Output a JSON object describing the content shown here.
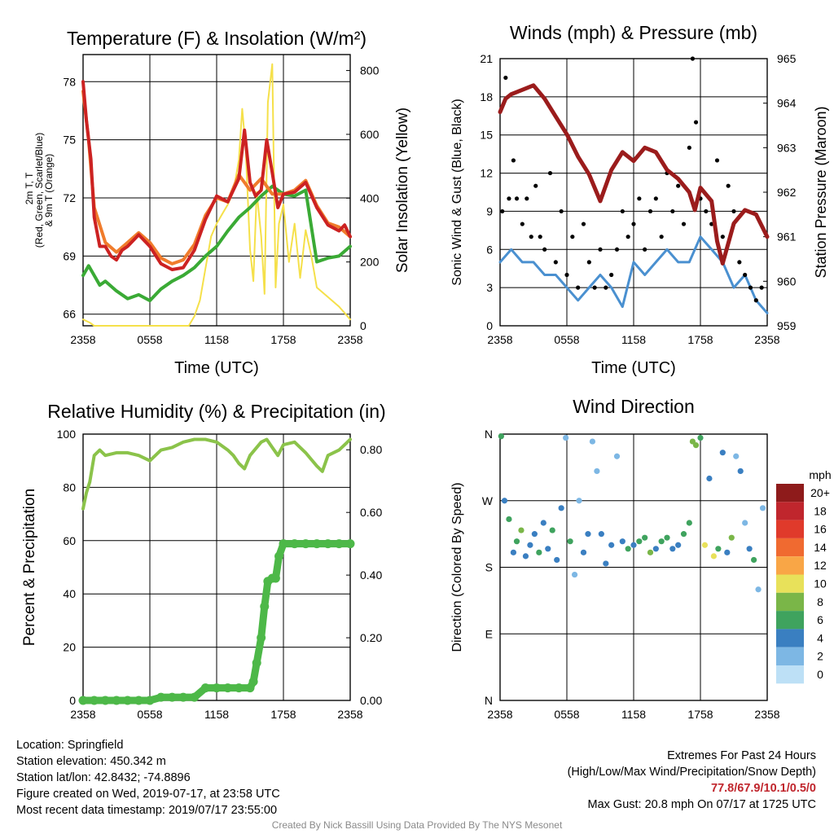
{
  "chart_data": [
    {
      "type": "line",
      "title": "Temperature (F) & Insolation (W/m²)",
      "xlabel": "Time (UTC)",
      "ylabel": "2m T, T_d, HI/WC (Red, Green, Scarlet/Blue) & 9m T (Orange)",
      "y2label": "Solar Insolation (Yellow)",
      "xticks": [
        "2358",
        "0558",
        "1158",
        "1758",
        "2358"
      ],
      "yticks": [
        "66",
        "69",
        "72",
        "75",
        "78"
      ],
      "y2ticks": [
        "0",
        "200",
        "400",
        "600",
        "800"
      ],
      "ylim": [
        65.4,
        79.4
      ],
      "y2lim": [
        0,
        850
      ],
      "colors": {
        "temp": "#cc2222",
        "temp9m": "#f07c2c",
        "dewpoint": "#3aaa35",
        "insolation": "#f5e04a"
      },
      "series": [
        {
          "key": "temp",
          "x": [
            0,
            0.3,
            0.7,
            1,
            1.5,
            2,
            2.5,
            3,
            3.5,
            4,
            5,
            6,
            7,
            8,
            9,
            10,
            11,
            12,
            13,
            14,
            14.5,
            15,
            15.5,
            16,
            16.5,
            17,
            17.5,
            18,
            19,
            20,
            21,
            22,
            23,
            23.5,
            24
          ],
          "values": [
            78,
            76,
            74,
            71,
            69.5,
            69.5,
            69,
            68.8,
            69.3,
            69.5,
            70.1,
            69.5,
            68.6,
            68.3,
            68.4,
            69.3,
            70.9,
            72.1,
            71.8,
            73,
            75.5,
            72.8,
            72.1,
            72.4,
            75,
            73.3,
            71.5,
            72.2,
            72.3,
            72.8,
            71.5,
            70.6,
            70.3,
            70.6,
            70
          ]
        },
        {
          "key": "temp9m",
          "x": [
            0,
            0.5,
            1,
            2,
            3,
            4,
            5,
            6,
            7,
            8,
            9,
            10,
            11,
            12,
            13,
            14,
            15,
            16,
            17,
            18,
            19,
            20,
            21,
            22,
            23,
            24
          ],
          "values": [
            77.5,
            75,
            71.5,
            69.7,
            69.2,
            69.7,
            70.2,
            69.7,
            68.9,
            68.6,
            68.8,
            69.6,
            71.1,
            72,
            71.8,
            73.2,
            72.4,
            73,
            72.2,
            72.2,
            72.4,
            72.9,
            71.6,
            70.7,
            70.5,
            70
          ]
        },
        {
          "key": "dewpoint",
          "x": [
            0,
            0.5,
            1,
            1.5,
            2,
            3,
            4,
            5,
            6,
            7,
            8,
            9,
            10,
            11,
            12,
            13,
            14,
            15,
            16,
            17,
            18,
            19,
            20,
            21,
            22,
            23,
            24
          ],
          "values": [
            68,
            68.5,
            68,
            67.5,
            67.7,
            67.2,
            66.8,
            67,
            66.7,
            67.3,
            67.7,
            68,
            68.4,
            69,
            69.5,
            70.3,
            71,
            71.5,
            72.1,
            72.6,
            72.2,
            72.1,
            72.4,
            68.7,
            68.9,
            69,
            69.5
          ]
        },
        {
          "key": "insolation",
          "x": [
            0,
            0.3,
            0.6,
            1,
            2,
            4,
            6,
            8,
            9.5,
            10,
            10.5,
            11,
            11.5,
            12,
            12.5,
            13,
            13.5,
            14,
            14.3,
            14.6,
            15,
            15.3,
            15.6,
            16,
            16.3,
            16.6,
            17,
            17.3,
            17.6,
            18,
            18.5,
            19,
            19.5,
            20,
            20.5,
            21,
            22,
            23,
            23.5,
            24
          ],
          "values": [
            20,
            15,
            10,
            0,
            0,
            0,
            0,
            0,
            0,
            30,
            80,
            180,
            280,
            320,
            350,
            380,
            420,
            520,
            680,
            560,
            240,
            140,
            420,
            280,
            100,
            700,
            820,
            120,
            320,
            380,
            200,
            320,
            150,
            300,
            220,
            120,
            90,
            60,
            40,
            20
          ]
        }
      ]
    },
    {
      "type": "scatter",
      "title": "Winds (mph) & Pressure (mb)",
      "xlabel": "Time (UTC)",
      "ylabel": "Sonic Wind & Gust (Blue, Black)",
      "y2label": "Station Pressure (Maroon)",
      "xticks": [
        "2358",
        "0558",
        "1158",
        "1758",
        "2358"
      ],
      "yticks": [
        "0",
        "3",
        "6",
        "9",
        "12",
        "15",
        "18",
        "21"
      ],
      "y2ticks": [
        "959",
        "960",
        "961",
        "962",
        "963",
        "964",
        "965"
      ],
      "ylim": [
        0,
        21
      ],
      "y2lim": [
        959,
        965
      ],
      "colors": {
        "wind": "#4a90d0",
        "gust": "#000000",
        "pressure": "#9b1c1c"
      },
      "series": [
        {
          "key": "pressure",
          "x": [
            0,
            0.5,
            1,
            2,
            3,
            4,
            5,
            6,
            7,
            8,
            9,
            10,
            11,
            12,
            13,
            14,
            15,
            16,
            17,
            17.5,
            18,
            19,
            19.5,
            20,
            21,
            22,
            23,
            24
          ],
          "values": [
            963.8,
            964.1,
            964.2,
            964.3,
            964.4,
            964.1,
            963.7,
            963.3,
            962.8,
            962.4,
            961.8,
            962.5,
            962.9,
            962.7,
            963,
            962.9,
            962.5,
            962.3,
            962,
            961.6,
            962.1,
            961.8,
            960.9,
            960.4,
            961.3,
            961.6,
            961.5,
            961
          ]
        },
        {
          "key": "wind",
          "x": [
            0,
            1,
            2,
            3,
            4,
            5,
            6,
            7,
            8,
            9,
            10,
            11,
            12,
            13,
            14,
            15,
            16,
            17,
            18,
            19,
            20,
            21,
            22,
            23,
            24
          ],
          "values": [
            5,
            6,
            5,
            5,
            4,
            4,
            3,
            2,
            3,
            4,
            3,
            1.5,
            5,
            4,
            5,
            6,
            5,
            5,
            7,
            6,
            5,
            3,
            4,
            2,
            1
          ]
        },
        {
          "key": "gust",
          "x": [
            0.2,
            0.5,
            0.8,
            1.2,
            1.5,
            2,
            2.4,
            2.8,
            3.2,
            3.6,
            4,
            4.5,
            5,
            5.5,
            6,
            6.5,
            7,
            7.5,
            8,
            8.5,
            9,
            9.5,
            10,
            10.5,
            11,
            11.5,
            12,
            12.5,
            13,
            13.5,
            14,
            14.5,
            15,
            15.5,
            16,
            16.5,
            17,
            17.3,
            17.6,
            18,
            18.5,
            19,
            19.5,
            20,
            20.5,
            21,
            21.5,
            22,
            22.5,
            23,
            23.5
          ],
          "values": [
            9,
            19.5,
            10,
            13,
            10,
            8,
            10,
            7,
            11,
            7,
            6,
            12,
            5,
            9,
            4,
            7,
            3,
            8,
            5,
            3,
            6,
            3,
            4,
            6,
            9,
            7,
            8,
            10,
            6,
            9,
            10,
            7,
            12,
            9,
            11,
            8,
            14,
            21,
            16,
            10,
            9,
            8,
            13,
            7,
            11,
            9,
            5,
            4,
            3,
            2,
            3
          ]
        }
      ]
    },
    {
      "type": "scatter",
      "title": "Relative Humidity (%) & Precipitation (in)",
      "xlabel": "",
      "ylabel": "Percent & Precipitation",
      "xticks": [
        "2358",
        "0558",
        "1158",
        "1758",
        "2358"
      ],
      "yticks": [
        "0",
        "20",
        "40",
        "60",
        "80",
        "100"
      ],
      "y2ticks": [
        "0.00",
        "0.20",
        "0.40",
        "0.60",
        "0.80"
      ],
      "ylim": [
        0,
        100
      ],
      "y2lim": [
        0,
        0.85
      ],
      "colors": {
        "rh": "#8bc34a",
        "precip": "#4db848"
      },
      "series": [
        {
          "key": "rh",
          "x": [
            0,
            0.3,
            0.6,
            1,
            1.5,
            2,
            3,
            4,
            5,
            6,
            7,
            8,
            9,
            10,
            11,
            12,
            13,
            13.5,
            14,
            14.5,
            15,
            16,
            16.5,
            17,
            17.5,
            18,
            19,
            20,
            21,
            21.5,
            22,
            23,
            23.5,
            24
          ],
          "values": [
            72,
            78,
            82,
            92,
            94,
            92,
            93,
            93,
            92,
            90,
            94,
            95,
            97,
            98,
            98,
            97,
            94,
            92,
            89,
            87,
            92,
            97,
            98,
            95,
            92,
            96,
            97,
            93,
            88,
            86,
            92,
            94,
            96,
            98
          ]
        },
        {
          "key": "precip",
          "x": [
            0,
            1,
            2,
            3,
            4,
            5,
            6,
            7,
            8,
            9,
            10,
            11,
            12,
            13,
            14,
            15,
            15.3,
            15.6,
            16,
            16.3,
            16.6,
            17,
            17.3,
            17.6,
            18,
            19,
            20,
            21,
            22,
            23,
            24
          ],
          "values": [
            0,
            0,
            0,
            0,
            0,
            0,
            0,
            0.01,
            0.01,
            0.01,
            0.01,
            0.04,
            0.04,
            0.04,
            0.04,
            0.04,
            0.06,
            0.12,
            0.2,
            0.3,
            0.38,
            0.39,
            0.39,
            0.46,
            0.5,
            0.5,
            0.5,
            0.5,
            0.5,
            0.5,
            0.5
          ]
        }
      ]
    },
    {
      "type": "scatter",
      "title": "Wind Direction",
      "ylabel": "Direction (Colored By Speed)",
      "xticks": [
        "2358",
        "0558",
        "1158",
        "1758",
        "2358"
      ],
      "yticks": [
        "N",
        "E",
        "S",
        "W",
        "N"
      ],
      "ylim": [
        0,
        360
      ],
      "colorbar": {
        "title": "mph",
        "labels": [
          "20+",
          "18",
          "16",
          "14",
          "12",
          "10",
          "8",
          "6",
          "4",
          "2",
          "0"
        ],
        "colors": [
          "#8e1b1b",
          "#c0262d",
          "#e03a2b",
          "#f06a30",
          "#f9a646",
          "#e8e15a",
          "#7ab648",
          "#3fa35e",
          "#3a7fc1",
          "#7db7e4",
          "#bde0f6"
        ]
      },
      "series": [
        {
          "key": "direction",
          "x": [
            0.1,
            0.4,
            0.8,
            1.2,
            1.5,
            1.9,
            2.3,
            2.7,
            3.1,
            3.5,
            3.9,
            4.3,
            4.7,
            5.1,
            5.5,
            5.9,
            6.3,
            6.7,
            7.1,
            7.5,
            7.9,
            8.3,
            8.7,
            9.1,
            9.5,
            10,
            10.5,
            11,
            11.5,
            12,
            12.5,
            13,
            13.5,
            14,
            14.5,
            15,
            15.5,
            16,
            16.5,
            17,
            17.3,
            17.6,
            18,
            18.4,
            18.8,
            19.2,
            19.6,
            20,
            20.4,
            20.8,
            21.2,
            21.6,
            22,
            22.4,
            22.8,
            23.2,
            23.6
          ],
          "values": [
            357,
            270,
            245,
            200,
            215,
            230,
            195,
            210,
            225,
            200,
            240,
            205,
            230,
            190,
            260,
            355,
            215,
            170,
            270,
            200,
            225,
            350,
            310,
            225,
            185,
            210,
            330,
            215,
            205,
            210,
            215,
            220,
            200,
            205,
            215,
            220,
            205,
            210,
            225,
            240,
            350,
            345,
            355,
            210,
            300,
            195,
            205,
            335,
            200,
            220,
            330,
            310,
            240,
            205,
            190,
            150,
            260
          ],
          "speed": [
            6,
            3,
            5,
            4,
            5,
            7,
            4,
            3,
            4,
            5,
            3,
            4,
            6,
            3,
            4,
            2,
            5,
            1,
            2,
            4,
            3,
            2,
            1,
            4,
            3,
            4,
            2,
            3,
            5,
            4,
            6,
            5,
            7,
            4,
            6,
            5,
            3,
            4,
            6,
            5,
            7,
            8,
            6,
            9,
            3,
            10,
            6,
            3,
            4,
            7,
            2,
            3,
            2,
            4,
            5,
            1,
            2
          ]
        }
      ]
    }
  ],
  "footer": {
    "location": "Location: Springfield",
    "elevation": "Station elevation: 450.342 m",
    "latlon": "Station lat/lon: 42.8432; -74.8896",
    "created": "Figure created on Wed, 2019-07-17, at 23:58 UTC",
    "recent": "Most recent data timestamp: 2019/07/17 23:55:00"
  },
  "extremes": {
    "title": "Extremes For Past 24 Hours",
    "subtitle": "(High/Low/Max Wind/Precipitation/Snow Depth)",
    "values": "77.8/67.9/10.1/0.5/0",
    "max_gust": "Max Gust: 20.8 mph On 07/17 at 1725 UTC"
  },
  "credit": "Created By Nick Bassill Using Data Provided By The NYS Mesonet"
}
